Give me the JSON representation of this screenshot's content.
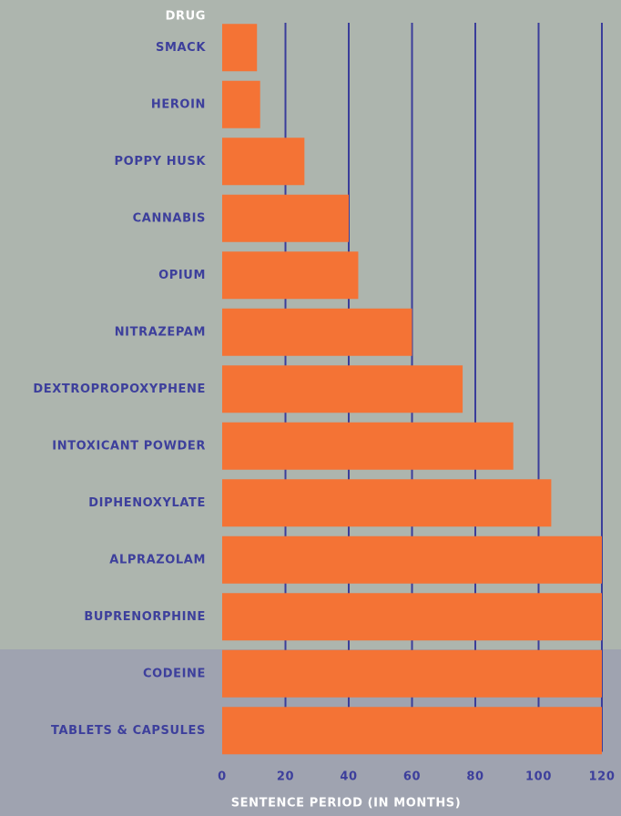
{
  "chart_data": {
    "type": "bar",
    "orientation": "horizontal",
    "category_axis_label": "DRUG",
    "xlabel": "SENTENCE PERIOD (IN MONTHS)",
    "categories": [
      "SMACK",
      "HEROIN",
      "POPPY HUSK",
      "CANNABIS",
      "OPIUM",
      "NITRAZEPAM",
      "DEXTROPROPOXYPHENE",
      "INTOXICANT POWDER",
      "DIPHENOXYLATE",
      "ALPRAZOLAM",
      "BUPRENORPHINE",
      "CODEINE",
      "TABLETS & CAPSULES"
    ],
    "values": [
      11,
      12,
      26,
      40,
      43,
      60,
      76,
      92,
      104,
      120,
      120,
      120,
      120
    ],
    "color": "#f47335",
    "xlim": [
      0,
      120
    ],
    "xticks": [
      0,
      20,
      40,
      60,
      80,
      100,
      120
    ],
    "grid": true
  }
}
